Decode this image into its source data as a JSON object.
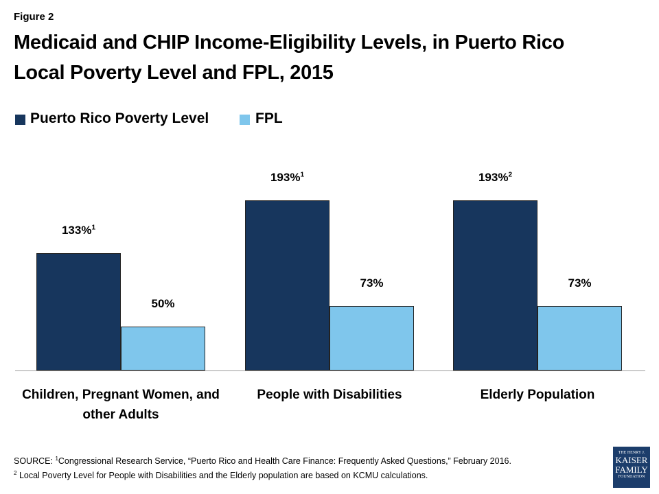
{
  "figure_label": "Figure 2",
  "chart_data": {
    "type": "bar",
    "title": [
      "Medicaid and CHIP Income-Eligibility Levels, in Puerto Rico",
      "Local Poverty Level and FPL, 2015"
    ],
    "categories": [
      "Children, Pregnant Women, and other Adults",
      "People with Disabilities",
      "Elderly Population"
    ],
    "series": [
      {
        "name": "Puerto Rico Poverty Level",
        "color": "#17365d",
        "values": [
          133,
          193,
          193
        ],
        "value_labels": [
          "133%",
          "193%",
          "193%"
        ],
        "footnote_marks": [
          "1",
          "1",
          "2"
        ]
      },
      {
        "name": "FPL",
        "color": "#7fc6ec",
        "values": [
          50,
          73,
          73
        ],
        "value_labels": [
          "50%",
          "73%",
          "73%"
        ]
      }
    ],
    "legend": "top-left"
  },
  "source": {
    "label": "SOURCE:",
    "notes": [
      {
        "mark": "1",
        "text": "Congressional Research Service, “Puerto Rico and Health Care Finance: Frequently Asked Questions,” February 2016."
      },
      {
        "mark": "2",
        "text": "Local Poverty Level for People with Disabilities and the Elderly population  are based on KCMU calculations."
      }
    ]
  },
  "logo": {
    "lines": [
      "THE HENRY J.",
      "KAISER",
      "FAMILY",
      "FOUNDATION"
    ]
  }
}
